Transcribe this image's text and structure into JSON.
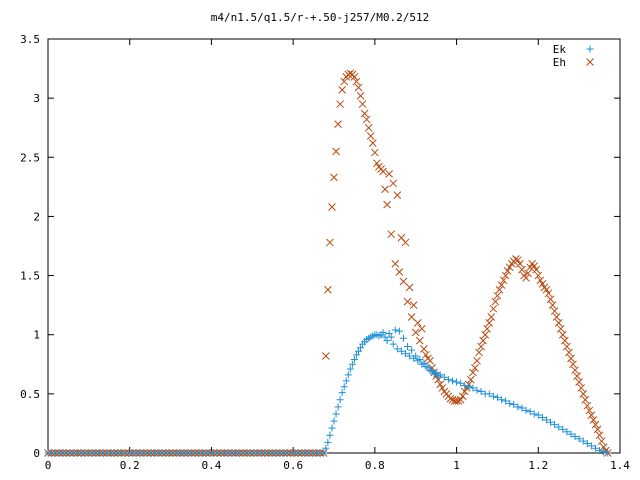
{
  "chart_data": {
    "type": "scatter",
    "title": "m4/n1.5/q1.5/r-+.50-j257/M0.2/512",
    "xlabel": "",
    "ylabel": "",
    "xlim": [
      0,
      1.4
    ],
    "ylim": [
      0,
      3.5
    ],
    "x_ticks": [
      0,
      0.2,
      0.4,
      0.6,
      0.8,
      1,
      1.2,
      1.4
    ],
    "x_tick_labels": [
      "0",
      "0.2",
      "0.4",
      "0.6",
      "0.8",
      "1",
      "1.2",
      "1.4"
    ],
    "y_ticks": [
      0,
      0.5,
      1,
      1.5,
      2,
      2.5,
      3,
      3.5
    ],
    "y_tick_labels": [
      "0",
      "0.5",
      "1",
      "1.5",
      "2",
      "2.5",
      "3",
      "3.5"
    ],
    "grid": false,
    "legend_position": "top-right",
    "series": [
      {
        "name": "Ek",
        "marker": "plus",
        "color": "#1e8fd8",
        "points": [
          [
            0,
            0
          ],
          [
            0.1,
            0
          ],
          [
            0.2,
            0
          ],
          [
            0.3,
            0
          ],
          [
            0.4,
            0
          ],
          [
            0.5,
            0
          ],
          [
            0.6,
            0
          ],
          [
            0.675,
            0
          ],
          [
            0.68,
            0.04
          ],
          [
            0.685,
            0.09
          ],
          [
            0.69,
            0.15
          ],
          [
            0.695,
            0.21
          ],
          [
            0.7,
            0.27
          ],
          [
            0.705,
            0.33
          ],
          [
            0.71,
            0.39
          ],
          [
            0.715,
            0.45
          ],
          [
            0.72,
            0.51
          ],
          [
            0.725,
            0.56
          ],
          [
            0.73,
            0.61
          ],
          [
            0.735,
            0.66
          ],
          [
            0.74,
            0.71
          ],
          [
            0.745,
            0.75
          ],
          [
            0.75,
            0.79
          ],
          [
            0.755,
            0.83
          ],
          [
            0.76,
            0.86
          ],
          [
            0.765,
            0.89
          ],
          [
            0.77,
            0.92
          ],
          [
            0.775,
            0.94
          ],
          [
            0.78,
            0.96
          ],
          [
            0.785,
            0.97
          ],
          [
            0.79,
            0.98
          ],
          [
            0.795,
            0.99
          ],
          [
            0.8,
            1.0
          ],
          [
            0.805,
            1.0
          ],
          [
            0.81,
            0.99
          ],
          [
            0.815,
            1.0
          ],
          [
            0.82,
            1.02
          ],
          [
            0.825,
            0.98
          ],
          [
            0.83,
            0.95
          ],
          [
            0.835,
            1.01
          ],
          [
            0.84,
            0.98
          ],
          [
            0.845,
            0.92
          ],
          [
            0.85,
            1.04
          ],
          [
            0.855,
            0.88
          ],
          [
            0.86,
            1.03
          ],
          [
            0.865,
            0.86
          ],
          [
            0.87,
            0.97
          ],
          [
            0.875,
            0.84
          ],
          [
            0.88,
            0.9
          ],
          [
            0.885,
            0.82
          ],
          [
            0.89,
            0.87
          ],
          [
            0.895,
            0.8
          ],
          [
            0.9,
            0.82
          ],
          [
            0.905,
            0.78
          ],
          [
            0.91,
            0.79
          ],
          [
            0.915,
            0.75
          ],
          [
            0.92,
            0.76
          ],
          [
            0.925,
            0.73
          ],
          [
            0.93,
            0.72
          ],
          [
            0.935,
            0.7
          ],
          [
            0.94,
            0.69
          ],
          [
            0.945,
            0.67
          ],
          [
            0.95,
            0.68
          ],
          [
            0.955,
            0.65
          ],
          [
            0.96,
            0.66
          ],
          [
            0.97,
            0.64
          ],
          [
            0.98,
            0.62
          ],
          [
            0.99,
            0.61
          ],
          [
            1.0,
            0.6
          ],
          [
            1.01,
            0.59
          ],
          [
            1.02,
            0.57
          ],
          [
            1.03,
            0.56
          ],
          [
            1.04,
            0.55
          ],
          [
            1.05,
            0.53
          ],
          [
            1.06,
            0.52
          ],
          [
            1.07,
            0.5
          ],
          [
            1.08,
            0.5
          ],
          [
            1.09,
            0.48
          ],
          [
            1.1,
            0.47
          ],
          [
            1.11,
            0.45
          ],
          [
            1.12,
            0.44
          ],
          [
            1.13,
            0.42
          ],
          [
            1.14,
            0.41
          ],
          [
            1.15,
            0.39
          ],
          [
            1.16,
            0.38
          ],
          [
            1.17,
            0.36
          ],
          [
            1.18,
            0.35
          ],
          [
            1.19,
            0.33
          ],
          [
            1.2,
            0.32
          ],
          [
            1.21,
            0.3
          ],
          [
            1.22,
            0.28
          ],
          [
            1.23,
            0.26
          ],
          [
            1.24,
            0.24
          ],
          [
            1.25,
            0.22
          ],
          [
            1.26,
            0.2
          ],
          [
            1.27,
            0.18
          ],
          [
            1.28,
            0.16
          ],
          [
            1.29,
            0.14
          ],
          [
            1.3,
            0.12
          ],
          [
            1.31,
            0.1
          ],
          [
            1.32,
            0.08
          ],
          [
            1.33,
            0.06
          ],
          [
            1.34,
            0.04
          ],
          [
            1.35,
            0.02
          ],
          [
            1.36,
            0.01
          ],
          [
            1.37,
            0
          ]
        ]
      },
      {
        "name": "Eh",
        "marker": "cross",
        "color": "#b84a10",
        "points": [
          [
            0,
            0
          ],
          [
            0.1,
            0
          ],
          [
            0.2,
            0
          ],
          [
            0.3,
            0
          ],
          [
            0.4,
            0
          ],
          [
            0.5,
            0
          ],
          [
            0.6,
            0
          ],
          [
            0.675,
            0
          ],
          [
            0.68,
            0.82
          ],
          [
            0.685,
            1.38
          ],
          [
            0.69,
            1.78
          ],
          [
            0.695,
            2.08
          ],
          [
            0.7,
            2.33
          ],
          [
            0.705,
            2.55
          ],
          [
            0.71,
            2.78
          ],
          [
            0.715,
            2.95
          ],
          [
            0.72,
            3.07
          ],
          [
            0.725,
            3.14
          ],
          [
            0.73,
            3.18
          ],
          [
            0.735,
            3.2
          ],
          [
            0.74,
            3.21
          ],
          [
            0.745,
            3.2
          ],
          [
            0.75,
            3.18
          ],
          [
            0.755,
            3.14
          ],
          [
            0.76,
            3.09
          ],
          [
            0.765,
            3.02
          ],
          [
            0.77,
            2.95
          ],
          [
            0.775,
            2.87
          ],
          [
            0.78,
            2.82
          ],
          [
            0.785,
            2.75
          ],
          [
            0.79,
            2.68
          ],
          [
            0.795,
            2.62
          ],
          [
            0.8,
            2.54
          ],
          [
            0.805,
            2.45
          ],
          [
            0.81,
            2.42
          ],
          [
            0.815,
            2.4
          ],
          [
            0.82,
            2.38
          ],
          [
            0.825,
            2.23
          ],
          [
            0.83,
            2.1
          ],
          [
            0.835,
            2.36
          ],
          [
            0.84,
            1.85
          ],
          [
            0.845,
            2.28
          ],
          [
            0.85,
            1.6
          ],
          [
            0.855,
            2.18
          ],
          [
            0.86,
            1.53
          ],
          [
            0.865,
            1.82
          ],
          [
            0.87,
            1.45
          ],
          [
            0.875,
            1.78
          ],
          [
            0.88,
            1.28
          ],
          [
            0.885,
            1.4
          ],
          [
            0.89,
            1.15
          ],
          [
            0.895,
            1.25
          ],
          [
            0.9,
            1.02
          ],
          [
            0.905,
            1.1
          ],
          [
            0.91,
            0.95
          ],
          [
            0.915,
            1.05
          ],
          [
            0.92,
            0.88
          ],
          [
            0.925,
            0.83
          ],
          [
            0.93,
            0.8
          ],
          [
            0.935,
            0.78
          ],
          [
            0.94,
            0.72
          ],
          [
            0.945,
            0.68
          ],
          [
            0.95,
            0.65
          ],
          [
            0.955,
            0.62
          ],
          [
            0.96,
            0.58
          ],
          [
            0.965,
            0.55
          ],
          [
            0.97,
            0.52
          ],
          [
            0.975,
            0.5
          ],
          [
            0.98,
            0.48
          ],
          [
            0.985,
            0.46
          ],
          [
            0.99,
            0.45
          ],
          [
            0.995,
            0.44
          ],
          [
            1.0,
            0.44
          ],
          [
            1.005,
            0.44
          ],
          [
            1.01,
            0.45
          ],
          [
            1.015,
            0.48
          ],
          [
            1.02,
            0.52
          ],
          [
            1.025,
            0.55
          ],
          [
            1.03,
            0.58
          ],
          [
            1.035,
            0.62
          ],
          [
            1.04,
            0.68
          ],
          [
            1.045,
            0.72
          ],
          [
            1.05,
            0.78
          ],
          [
            1.055,
            0.85
          ],
          [
            1.06,
            0.9
          ],
          [
            1.065,
            0.95
          ],
          [
            1.07,
            1.0
          ],
          [
            1.075,
            1.05
          ],
          [
            1.08,
            1.1
          ],
          [
            1.085,
            1.15
          ],
          [
            1.09,
            1.22
          ],
          [
            1.095,
            1.28
          ],
          [
            1.1,
            1.33
          ],
          [
            1.105,
            1.38
          ],
          [
            1.11,
            1.42
          ],
          [
            1.115,
            1.46
          ],
          [
            1.12,
            1.5
          ],
          [
            1.125,
            1.54
          ],
          [
            1.13,
            1.57
          ],
          [
            1.135,
            1.6
          ],
          [
            1.14,
            1.62
          ],
          [
            1.145,
            1.64
          ],
          [
            1.15,
            1.63
          ],
          [
            1.155,
            1.6
          ],
          [
            1.16,
            1.55
          ],
          [
            1.165,
            1.5
          ],
          [
            1.17,
            1.48
          ],
          [
            1.175,
            1.52
          ],
          [
            1.18,
            1.57
          ],
          [
            1.185,
            1.6
          ],
          [
            1.19,
            1.58
          ],
          [
            1.195,
            1.55
          ],
          [
            1.2,
            1.5
          ],
          [
            1.205,
            1.46
          ],
          [
            1.21,
            1.43
          ],
          [
            1.215,
            1.4
          ],
          [
            1.22,
            1.38
          ],
          [
            1.225,
            1.35
          ],
          [
            1.23,
            1.3
          ],
          [
            1.235,
            1.25
          ],
          [
            1.24,
            1.2
          ],
          [
            1.245,
            1.15
          ],
          [
            1.25,
            1.1
          ],
          [
            1.255,
            1.05
          ],
          [
            1.26,
            1.0
          ],
          [
            1.265,
            0.95
          ],
          [
            1.27,
            0.9
          ],
          [
            1.275,
            0.85
          ],
          [
            1.28,
            0.8
          ],
          [
            1.285,
            0.75
          ],
          [
            1.29,
            0.7
          ],
          [
            1.295,
            0.65
          ],
          [
            1.3,
            0.6
          ],
          [
            1.305,
            0.55
          ],
          [
            1.31,
            0.5
          ],
          [
            1.315,
            0.45
          ],
          [
            1.32,
            0.4
          ],
          [
            1.325,
            0.36
          ],
          [
            1.33,
            0.32
          ],
          [
            1.335,
            0.28
          ],
          [
            1.34,
            0.24
          ],
          [
            1.345,
            0.2
          ],
          [
            1.35,
            0.15
          ],
          [
            1.355,
            0.1
          ],
          [
            1.36,
            0.05
          ],
          [
            1.365,
            0.02
          ],
          [
            1.37,
            0
          ]
        ]
      }
    ]
  }
}
